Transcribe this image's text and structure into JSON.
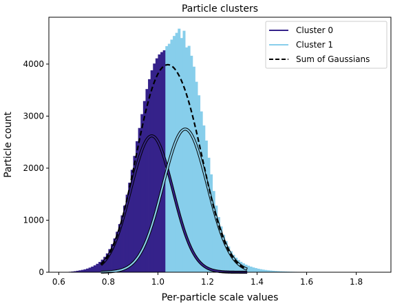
{
  "chart_data": {
    "type": "bar",
    "title": "Particle clusters",
    "xlabel": "Per-particle scale values",
    "ylabel": "Particle count",
    "xlim": [
      0.56,
      1.94
    ],
    "ylim": [
      0,
      4900
    ],
    "xticks": [
      0.6,
      0.8,
      1.0,
      1.2,
      1.4,
      1.6,
      1.8
    ],
    "xtick_labels": [
      "0.6",
      "0.8",
      "1.0",
      "1.2",
      "1.4",
      "1.6",
      "1.8"
    ],
    "yticks": [
      0,
      1000,
      2000,
      3000,
      4000
    ],
    "ytick_labels": [
      "0",
      "1000",
      "2000",
      "3000",
      "4000"
    ],
    "bin_width": 0.01,
    "threshold": 1.035,
    "colors": {
      "cluster0": "#35228a",
      "cluster1": "#87ceeb",
      "sum": "#000000"
    },
    "legend_position": "top-right",
    "series": [
      {
        "name": "Cluster 0",
        "kind": "gaussian",
        "mean": 0.975,
        "std": 0.085,
        "amplitude": 2620,
        "range": [
          0.77,
          1.36
        ],
        "bins": [
          {
            "x": 0.625,
            "y": 2
          },
          {
            "x": 0.635,
            "y": 5
          },
          {
            "x": 0.645,
            "y": 9
          },
          {
            "x": 0.655,
            "y": 14
          },
          {
            "x": 0.665,
            "y": 20
          },
          {
            "x": 0.675,
            "y": 28
          },
          {
            "x": 0.685,
            "y": 36
          },
          {
            "x": 0.695,
            "y": 45
          },
          {
            "x": 0.705,
            "y": 56
          },
          {
            "x": 0.715,
            "y": 70
          },
          {
            "x": 0.725,
            "y": 88
          },
          {
            "x": 0.735,
            "y": 108
          },
          {
            "x": 0.745,
            "y": 132
          },
          {
            "x": 0.755,
            "y": 162
          },
          {
            "x": 0.765,
            "y": 198
          },
          {
            "x": 0.775,
            "y": 242
          },
          {
            "x": 0.785,
            "y": 296
          },
          {
            "x": 0.795,
            "y": 362
          },
          {
            "x": 0.805,
            "y": 445
          },
          {
            "x": 0.815,
            "y": 540
          },
          {
            "x": 0.825,
            "y": 650
          },
          {
            "x": 0.835,
            "y": 778
          },
          {
            "x": 0.845,
            "y": 925
          },
          {
            "x": 0.855,
            "y": 1092
          },
          {
            "x": 0.865,
            "y": 1280
          },
          {
            "x": 0.875,
            "y": 1490
          },
          {
            "x": 0.885,
            "y": 1720
          },
          {
            "x": 0.895,
            "y": 1968
          },
          {
            "x": 0.905,
            "y": 2235
          },
          {
            "x": 0.915,
            "y": 2518
          },
          {
            "x": 0.925,
            "y": 2772
          },
          {
            "x": 0.935,
            "y": 3038
          },
          {
            "x": 0.945,
            "y": 3290
          },
          {
            "x": 0.955,
            "y": 3520
          },
          {
            "x": 0.965,
            "y": 3710
          },
          {
            "x": 0.975,
            "y": 3880
          },
          {
            "x": 0.985,
            "y": 4010
          },
          {
            "x": 0.995,
            "y": 4110
          },
          {
            "x": 1.005,
            "y": 4185
          },
          {
            "x": 1.015,
            "y": 4230
          },
          {
            "x": 1.025,
            "y": 4265
          }
        ]
      },
      {
        "name": "Cluster 1",
        "kind": "gaussian",
        "mean": 1.11,
        "std": 0.09,
        "amplitude": 2750,
        "range": [
          0.77,
          1.36
        ],
        "bins": [
          {
            "x": 1.035,
            "y": 4345
          },
          {
            "x": 1.045,
            "y": 4390
          },
          {
            "x": 1.055,
            "y": 4470
          },
          {
            "x": 1.065,
            "y": 4540
          },
          {
            "x": 1.075,
            "y": 4600
          },
          {
            "x": 1.085,
            "y": 4680
          },
          {
            "x": 1.095,
            "y": 4500
          },
          {
            "x": 1.105,
            "y": 4640
          },
          {
            "x": 1.115,
            "y": 4320
          },
          {
            "x": 1.125,
            "y": 4350
          },
          {
            "x": 1.135,
            "y": 4160
          },
          {
            "x": 1.145,
            "y": 3950
          },
          {
            "x": 1.155,
            "y": 3660
          },
          {
            "x": 1.165,
            "y": 3400
          },
          {
            "x": 1.175,
            "y": 3090
          },
          {
            "x": 1.185,
            "y": 2820
          },
          {
            "x": 1.195,
            "y": 2530
          },
          {
            "x": 1.205,
            "y": 2200
          },
          {
            "x": 1.215,
            "y": 1880
          },
          {
            "x": 1.225,
            "y": 1560
          },
          {
            "x": 1.235,
            "y": 1280
          },
          {
            "x": 1.245,
            "y": 1060
          },
          {
            "x": 1.255,
            "y": 880
          },
          {
            "x": 1.265,
            "y": 720
          },
          {
            "x": 1.275,
            "y": 600
          },
          {
            "x": 1.285,
            "y": 495
          },
          {
            "x": 1.295,
            "y": 405
          },
          {
            "x": 1.305,
            "y": 335
          },
          {
            "x": 1.315,
            "y": 280
          },
          {
            "x": 1.325,
            "y": 235
          },
          {
            "x": 1.335,
            "y": 200
          },
          {
            "x": 1.345,
            "y": 170
          },
          {
            "x": 1.355,
            "y": 145
          },
          {
            "x": 1.365,
            "y": 125
          },
          {
            "x": 1.375,
            "y": 108
          },
          {
            "x": 1.385,
            "y": 92
          },
          {
            "x": 1.395,
            "y": 80
          },
          {
            "x": 1.405,
            "y": 68
          },
          {
            "x": 1.415,
            "y": 58
          },
          {
            "x": 1.425,
            "y": 50
          },
          {
            "x": 1.435,
            "y": 43
          },
          {
            "x": 1.445,
            "y": 37
          },
          {
            "x": 1.455,
            "y": 32
          },
          {
            "x": 1.465,
            "y": 28
          },
          {
            "x": 1.475,
            "y": 24
          },
          {
            "x": 1.485,
            "y": 21
          },
          {
            "x": 1.495,
            "y": 18
          },
          {
            "x": 1.505,
            "y": 16
          },
          {
            "x": 1.515,
            "y": 14
          },
          {
            "x": 1.525,
            "y": 12
          },
          {
            "x": 1.535,
            "y": 10
          },
          {
            "x": 1.545,
            "y": 9
          },
          {
            "x": 1.555,
            "y": 8
          },
          {
            "x": 1.565,
            "y": 7
          },
          {
            "x": 1.575,
            "y": 6
          },
          {
            "x": 1.585,
            "y": 5
          },
          {
            "x": 1.595,
            "y": 5
          },
          {
            "x": 1.605,
            "y": 4
          },
          {
            "x": 1.615,
            "y": 4
          },
          {
            "x": 1.625,
            "y": 3
          },
          {
            "x": 1.635,
            "y": 3
          },
          {
            "x": 1.645,
            "y": 2
          },
          {
            "x": 1.655,
            "y": 2
          },
          {
            "x": 1.665,
            "y": 2
          },
          {
            "x": 1.675,
            "y": 1
          },
          {
            "x": 1.685,
            "y": 1
          },
          {
            "x": 1.695,
            "y": 1
          },
          {
            "x": 1.705,
            "y": 1
          }
        ]
      },
      {
        "name": "Sum of Gaussians",
        "kind": "sum",
        "range": [
          0.77,
          1.36
        ]
      }
    ]
  }
}
